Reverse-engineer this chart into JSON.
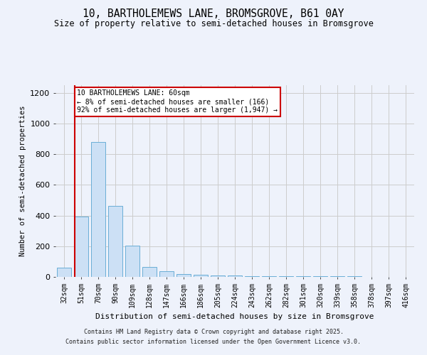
{
  "title_line1": "10, BARTHOLEMEWS LANE, BROMSGROVE, B61 0AY",
  "title_line2": "Size of property relative to semi-detached houses in Bromsgrove",
  "xlabel": "Distribution of semi-detached houses by size in Bromsgrove",
  "ylabel": "Number of semi-detached properties",
  "categories": [
    "32sqm",
    "51sqm",
    "70sqm",
    "90sqm",
    "109sqm",
    "128sqm",
    "147sqm",
    "166sqm",
    "186sqm",
    "205sqm",
    "224sqm",
    "243sqm",
    "262sqm",
    "282sqm",
    "301sqm",
    "320sqm",
    "339sqm",
    "358sqm",
    "378sqm",
    "397sqm",
    "416sqm"
  ],
  "values": [
    60,
    395,
    880,
    465,
    205,
    65,
    35,
    20,
    15,
    10,
    8,
    6,
    5,
    4,
    4,
    3,
    3,
    3,
    2,
    2,
    2
  ],
  "bar_color": "#cce0f5",
  "bar_edge_color": "#6aaed6",
  "grid_color": "#cccccc",
  "vline_color": "#cc0000",
  "vline_x": 0.62,
  "annotation_text": "10 BARTHOLEMEWS LANE: 60sqm\n← 8% of semi-detached houses are smaller (166)\n92% of semi-detached houses are larger (1,947) →",
  "annotation_box_color": "#ffffff",
  "annotation_box_edge": "#cc0000",
  "ylim": [
    0,
    1250
  ],
  "yticks": [
    0,
    200,
    400,
    600,
    800,
    1000,
    1200
  ],
  "footer_line1": "Contains HM Land Registry data © Crown copyright and database right 2025.",
  "footer_line2": "Contains public sector information licensed under the Open Government Licence v3.0.",
  "bg_color": "#eef2fb",
  "plot_bg_color": "#eef2fb"
}
